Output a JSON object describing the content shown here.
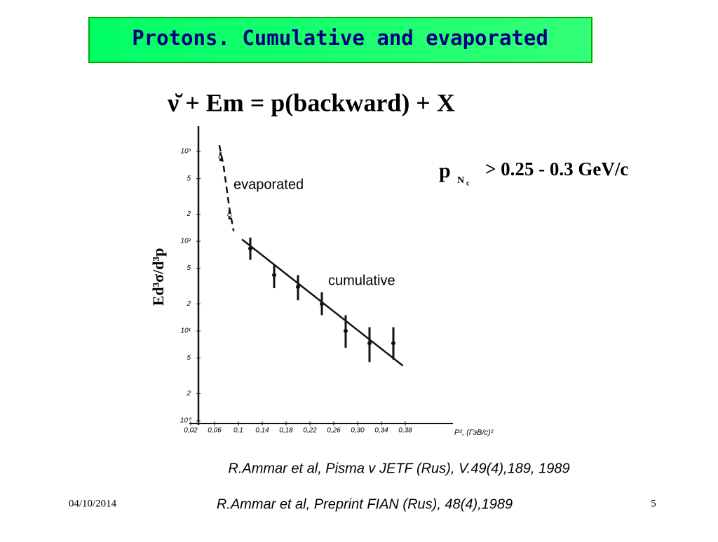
{
  "title": "Protons. Cumulative and evaporated",
  "reaction": "ν̆ + Em = p(backward) + X",
  "threshold": {
    "symbol": "p",
    "sub": "N",
    "subsub": "c",
    "condition": "> 0.25 - 0.3 GeV/c"
  },
  "references": [
    "R.Ammar et al, Pisma v JETF (Rus), V.49(4),189, 1989",
    "R.Ammar et al, Preprint FIAN (Rus), 48(4),1989"
  ],
  "date": "04/10/2014",
  "page_number": "5",
  "chart_data": {
    "type": "scatter",
    "log_y": true,
    "y_label": "Ed³σ/d³p",
    "x_label": "P², (ГэВ/с)²",
    "xlim": [
      0.02,
      0.46
    ],
    "ylim": [
      1,
      1750
    ],
    "xticks": [
      {
        "value": 0.02,
        "label": "0,02"
      },
      {
        "value": 0.06,
        "label": "0,06"
      },
      {
        "value": 0.1,
        "label": "0,1"
      },
      {
        "value": 0.14,
        "label": "0,14"
      },
      {
        "value": 0.18,
        "label": "0,18"
      },
      {
        "value": 0.22,
        "label": "0,22"
      },
      {
        "value": 0.26,
        "label": "0,26"
      },
      {
        "value": 0.3,
        "label": "0,30"
      },
      {
        "value": 0.34,
        "label": "0,34"
      },
      {
        "value": 0.38,
        "label": "0,38"
      }
    ],
    "yticks": [
      {
        "value": 1,
        "label": "10⁰"
      },
      2,
      5,
      {
        "value": 10,
        "label": "10¹"
      },
      {
        "value": 20,
        "label": "2"
      },
      {
        "value": 50,
        "label": "5"
      },
      {
        "value": 100,
        "label": "10²"
      },
      {
        "value": 200,
        "label": "2"
      },
      {
        "value": 500,
        "label": "5"
      },
      {
        "value": 1000,
        "label": "10³"
      }
    ],
    "series": [
      {
        "name": "evaporated",
        "color": "#111111",
        "x": [
          0.07,
          0.085
        ],
        "values": [
          870,
          196
        ],
        "low": [
          780,
          175
        ],
        "high": [
          980,
          220
        ]
      },
      {
        "name": "cumulative",
        "color": "#111111",
        "x": [
          0.12,
          0.16,
          0.2,
          0.24,
          0.28,
          0.32,
          0.36
        ],
        "values": [
          83,
          42,
          31,
          20,
          10,
          7.3,
          7.3
        ],
        "low": [
          62,
          30,
          22,
          15,
          6.5,
          4.5,
          4.8
        ],
        "high": [
          110,
          55,
          42,
          27,
          15,
          11,
          11
        ]
      },
      {
        "style": "dashed",
        "color": "#111111",
        "x": [
          0.068,
          0.075,
          0.085,
          0.092
        ],
        "values": [
          1175,
          700,
          230,
          130
        ]
      },
      {
        "style": "solid",
        "color": "#111111",
        "x": [
          0.106,
          0.376
        ],
        "values": [
          105,
          4.1
        ]
      }
    ]
  }
}
